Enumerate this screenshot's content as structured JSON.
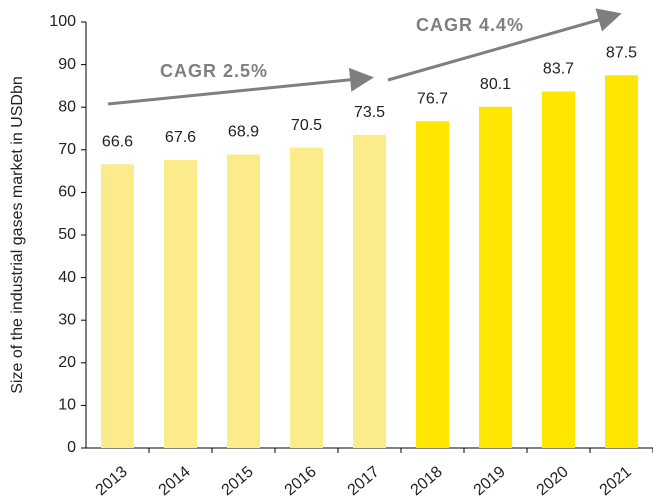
{
  "chart_data": {
    "type": "bar",
    "ylabel": "Size of the industrial gases market in USDbn",
    "categories": [
      "2013",
      "2014",
      "2015",
      "2016",
      "2017",
      "2018",
      "2019",
      "2020",
      "2021"
    ],
    "values": [
      66.6,
      67.6,
      68.9,
      70.5,
      73.5,
      76.7,
      80.1,
      83.7,
      87.5
    ],
    "colors": [
      "#fbeb8a",
      "#fbeb8a",
      "#fbeb8a",
      "#fbeb8a",
      "#fbeb8a",
      "#ffe600",
      "#ffe600",
      "#ffe600",
      "#ffe600"
    ],
    "ylim": [
      0,
      100
    ],
    "yticks": [
      0,
      10,
      20,
      30,
      40,
      50,
      60,
      70,
      80,
      90,
      100
    ],
    "annotations": [
      "CAGR 2.5%",
      "CAGR 4.4%"
    ]
  }
}
